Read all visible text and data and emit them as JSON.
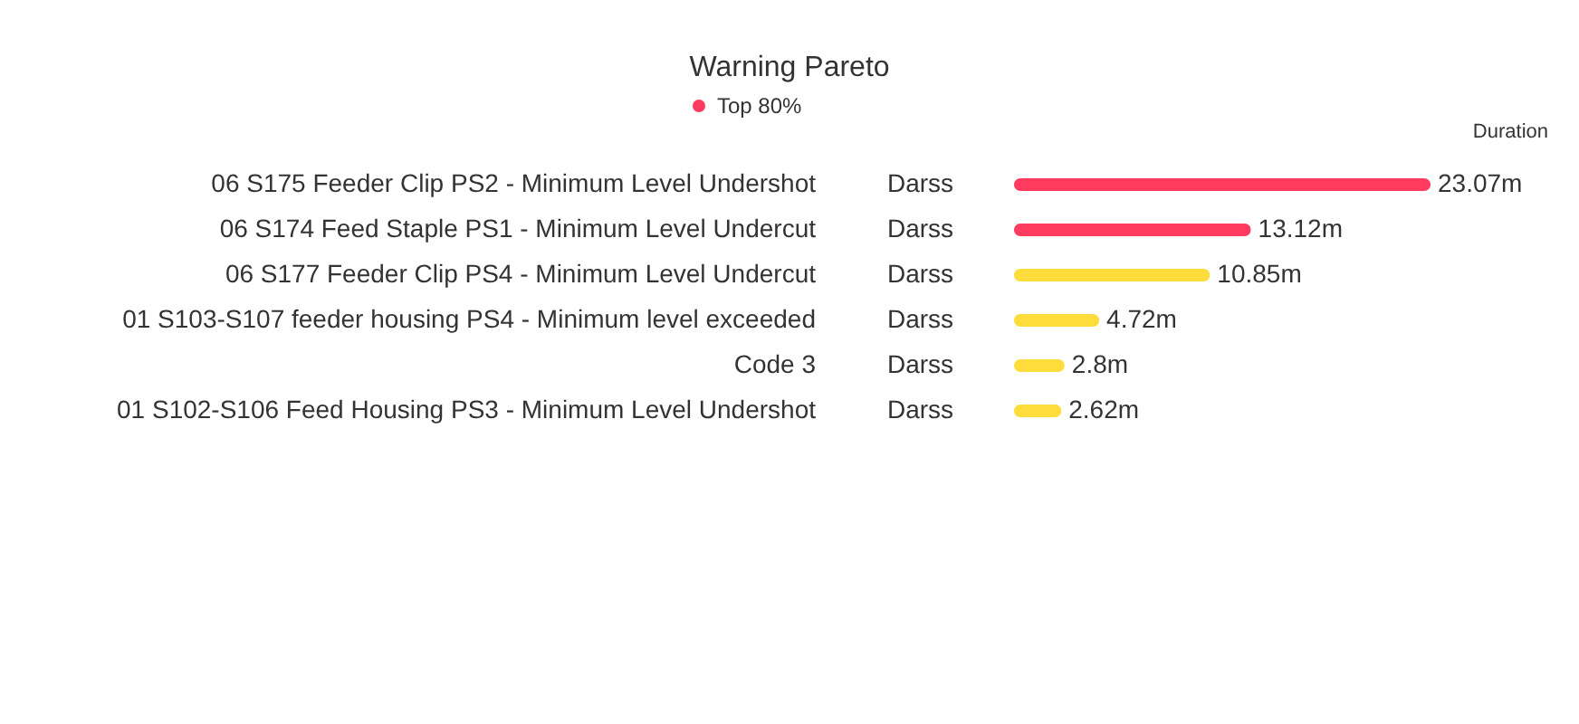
{
  "chart_data": {
    "type": "bar",
    "orientation": "horizontal",
    "title": "Warning Pareto",
    "xlabel": "Duration",
    "categories": [
      "06 S175 Feeder Clip PS2 - Minimum Level Undershot",
      "06 S174 Feed Staple PS1 - Minimum Level Undercut",
      "06 S177 Feeder Clip PS4 - Minimum Level Undercut",
      "01 S103-S107 feeder housing PS4 - Minimum level exceeded",
      "Code 3",
      "01 S102-S106 Feed Housing PS3 - Minimum Level Undershot"
    ],
    "series": [
      {
        "name": "Top 80%",
        "color": "#ff3b5f",
        "values": [
          23.07,
          13.12,
          null,
          null,
          null,
          null
        ],
        "value_labels": [
          "23.07m",
          "13.12m",
          null,
          null,
          null,
          null
        ]
      },
      {
        "color": "#fddc3c",
        "values": [
          null,
          null,
          10.85,
          4.72,
          2.8,
          2.62
        ],
        "value_labels": [
          null,
          null,
          "10.85m",
          "4.72m",
          "2.8m",
          "2.62m"
        ]
      }
    ],
    "annotations": [
      "Darss",
      "Darss",
      "Darss",
      "Darss",
      "Darss",
      "Darss"
    ],
    "legend": "top",
    "grid": false
  }
}
